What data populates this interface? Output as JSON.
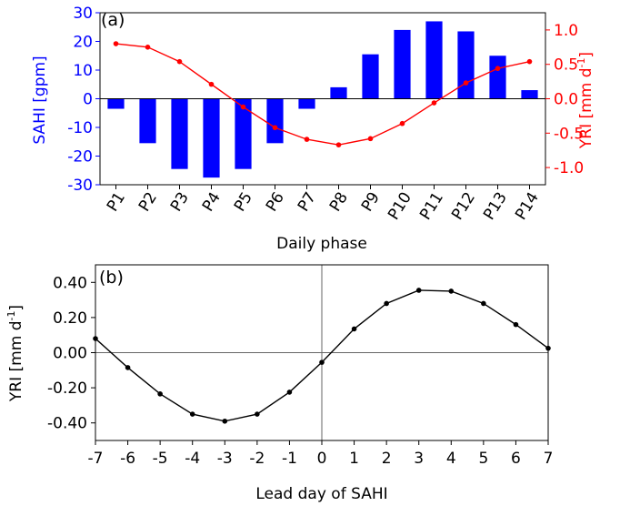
{
  "colors": {
    "bar": "#0000ff",
    "left_axis": "#0000ff",
    "right_axis": "#ff0000",
    "line_a": "#ff0000",
    "line_b": "#000000"
  },
  "chart_data": [
    {
      "type": "bar+line",
      "panel_label": "(a)",
      "xlabel": "Daily phase",
      "categories": [
        "P1",
        "P2",
        "P3",
        "P4",
        "P5",
        "P6",
        "P7",
        "P8",
        "P9",
        "P10",
        "P11",
        "P12",
        "P13",
        "P14"
      ],
      "series": [
        {
          "name": "SAHI",
          "type": "bar",
          "axis": "left",
          "values": [
            -3.5,
            -15.5,
            -24.5,
            -27.5,
            -24.5,
            -15.5,
            -3.5,
            4,
            15.5,
            24,
            27,
            23.5,
            15,
            3
          ]
        },
        {
          "name": "YRI",
          "type": "line",
          "axis": "right",
          "values": [
            0.8,
            0.75,
            0.54,
            0.21,
            -0.12,
            -0.42,
            -0.59,
            -0.67,
            -0.58,
            -0.36,
            -0.06,
            0.23,
            0.44,
            0.54
          ]
        }
      ],
      "ylabel_left": "SAHI [gpm]",
      "ylim_left": [
        -30,
        30
      ],
      "yticks_left": [
        "-30",
        "-20",
        "-10",
        "0",
        "10",
        "20",
        "30"
      ],
      "ylabel_right": "YRI [mm d",
      "ylabel_right_sup": "-1",
      "ylabel_right_end": "]",
      "ylim_right": [
        -1.25,
        1.25
      ],
      "yticks_right": [
        "-1.0",
        "-0.5",
        "0.0",
        "0.5",
        "1.0"
      ]
    },
    {
      "type": "line",
      "panel_label": "(b)",
      "xlabel": "Lead day of SAHI",
      "x": [
        -7,
        -6,
        -5,
        -4,
        -3,
        -2,
        -1,
        0,
        1,
        2,
        3,
        4,
        5,
        6,
        7
      ],
      "xticks": [
        "-7",
        "-6",
        "-5",
        "-4",
        "-3",
        "-2",
        "-1",
        "0",
        "1",
        "2",
        "3",
        "4",
        "5",
        "6",
        "7"
      ],
      "series": [
        {
          "name": "YRI",
          "values": [
            0.08,
            -0.085,
            -0.235,
            -0.35,
            -0.39,
            -0.35,
            -0.225,
            -0.055,
            0.135,
            0.28,
            0.355,
            0.35,
            0.28,
            0.16,
            0.025
          ]
        }
      ],
      "ylabel": "YRI [mm d",
      "ylabel_sup": "-1",
      "ylabel_end": "]",
      "ylim": [
        -0.5,
        0.5
      ],
      "yticks": [
        "-0.40",
        "-0.20",
        "0.00",
        "0.20",
        "0.40"
      ],
      "xlim": [
        -7,
        7
      ]
    }
  ]
}
